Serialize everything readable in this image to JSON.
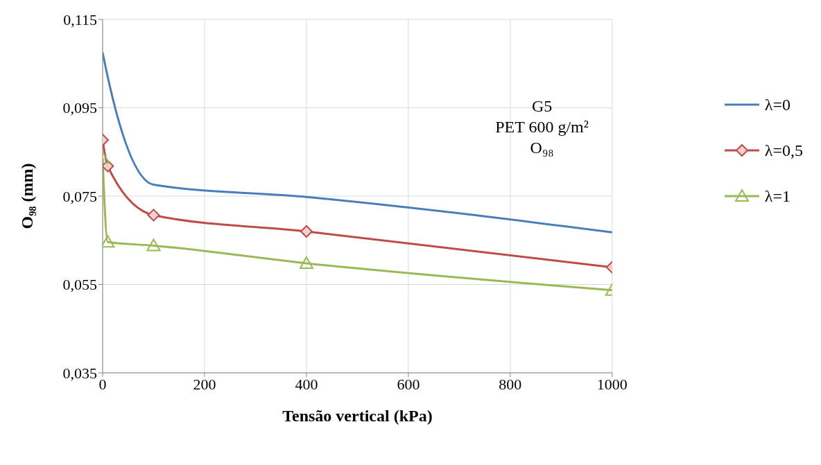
{
  "chart_data": {
    "type": "line",
    "ylabel": "O₉₈ (mm)",
    "xlabel": "Tensão vertical (kPa)",
    "annotations": [
      "G5",
      "PET 600 g/m²",
      "O₉₈"
    ],
    "series": [
      {
        "name": "λ=0",
        "color": "#4a7ebb",
        "marker": "none",
        "x": [
          0,
          10,
          100,
          400,
          1000
        ],
        "values": [
          0.1075,
          0.102,
          0.0776,
          0.0748,
          0.0668
        ]
      },
      {
        "name": "λ=0,5",
        "color": "#be4b48",
        "marker": "diamond",
        "x": [
          0,
          10,
          100,
          400,
          1000
        ],
        "values": [
          0.0877,
          0.0818,
          0.0707,
          0.067,
          0.0589
        ]
      },
      {
        "name": "λ=1",
        "color": "#98b954",
        "marker": "triangle",
        "x": [
          0,
          10,
          100,
          400,
          1000
        ],
        "values": [
          0.0836,
          0.0646,
          0.0638,
          0.0598,
          0.0537
        ]
      }
    ],
    "xlim": [
      0,
      1000
    ],
    "xticks": [
      0,
      200,
      400,
      600,
      800,
      1000
    ],
    "ylim": [
      0.035,
      0.115
    ],
    "yticks": [
      {
        "value": 0.035,
        "label": "0,035"
      },
      {
        "value": 0.055,
        "label": "0,055"
      },
      {
        "value": 0.075,
        "label": "0,075"
      },
      {
        "value": 0.095,
        "label": "0,095"
      },
      {
        "value": 0.115,
        "label": "0,115"
      }
    ],
    "grid": true,
    "legend": "right"
  }
}
